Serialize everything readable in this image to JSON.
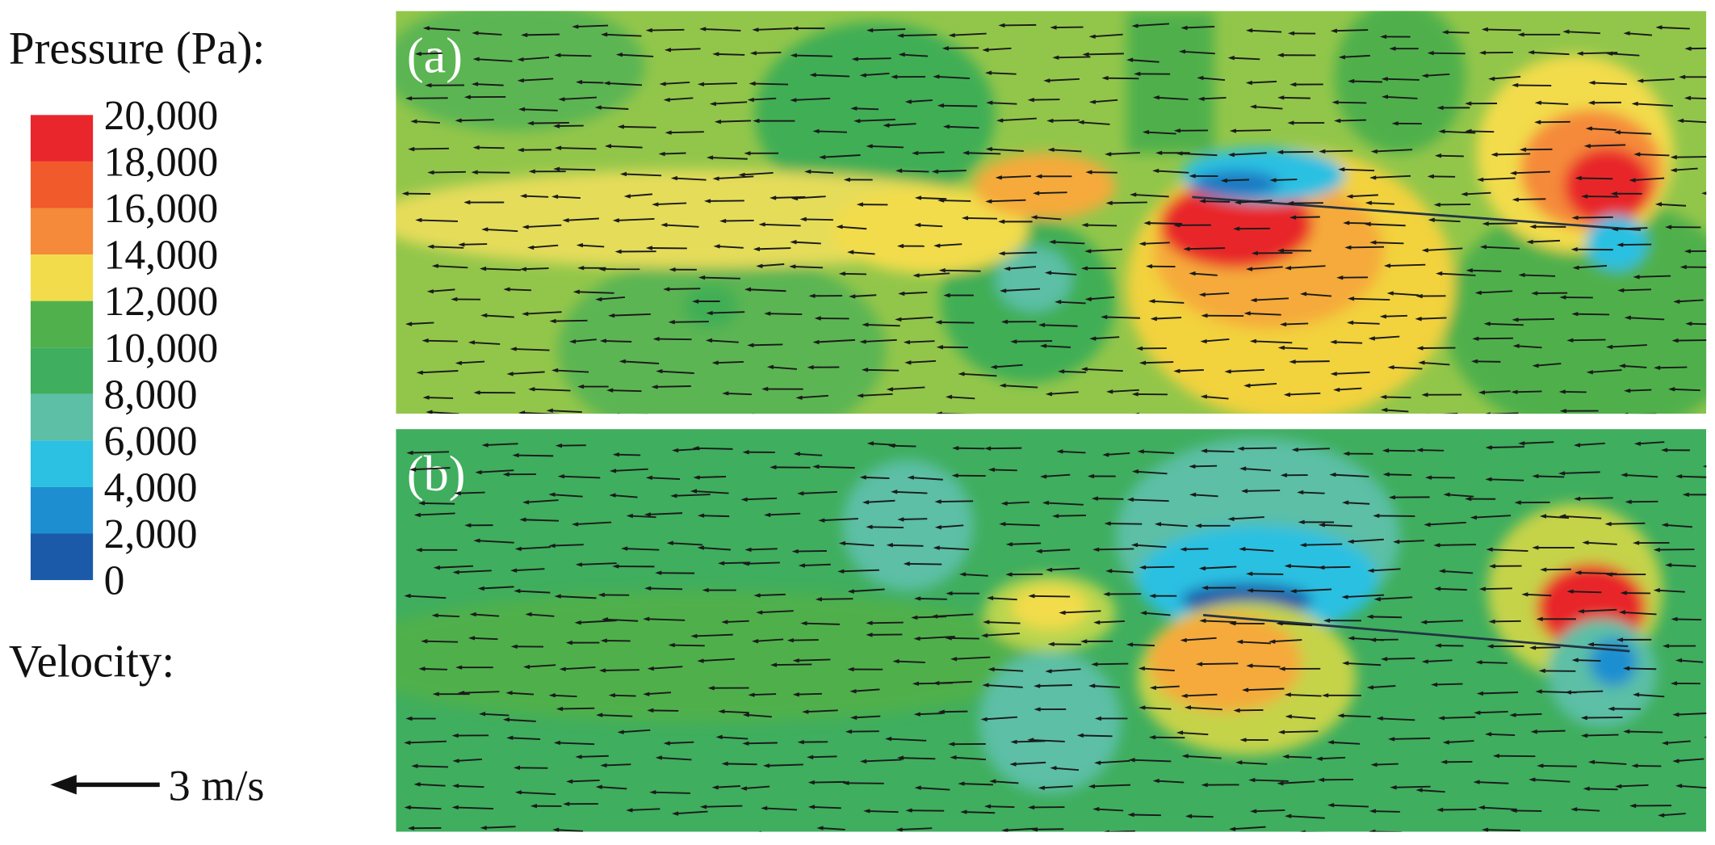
{
  "legend": {
    "title": "Pressure (Pa):",
    "colorbar": {
      "ticks": [
        {
          "value": 20000,
          "label": "20,000"
        },
        {
          "value": 18000,
          "label": "18,000"
        },
        {
          "value": 16000,
          "label": "16,000"
        },
        {
          "value": 14000,
          "label": "14,000"
        },
        {
          "value": 12000,
          "label": "12,000"
        },
        {
          "value": 10000,
          "label": "10,000"
        },
        {
          "value": 8000,
          "label": "8,000"
        },
        {
          "value": 6000,
          "label": "6,000"
        },
        {
          "value": 4000,
          "label": "4,000"
        },
        {
          "value": 2000,
          "label": "2,000"
        },
        {
          "value": 0,
          "label": "0"
        }
      ],
      "colors": [
        "#e8262b",
        "#f15a2b",
        "#f58a3a",
        "#f2dc4c",
        "#4fb04c",
        "#3fae5e",
        "#5cbfa6",
        "#2cc0e2",
        "#1d8fd0",
        "#1a5aa8"
      ]
    },
    "velocity_title": "Velocity:",
    "velocity_scale": "3 m/s"
  },
  "panels": [
    {
      "label": "(a)"
    },
    {
      "label": "(b)"
    }
  ]
}
